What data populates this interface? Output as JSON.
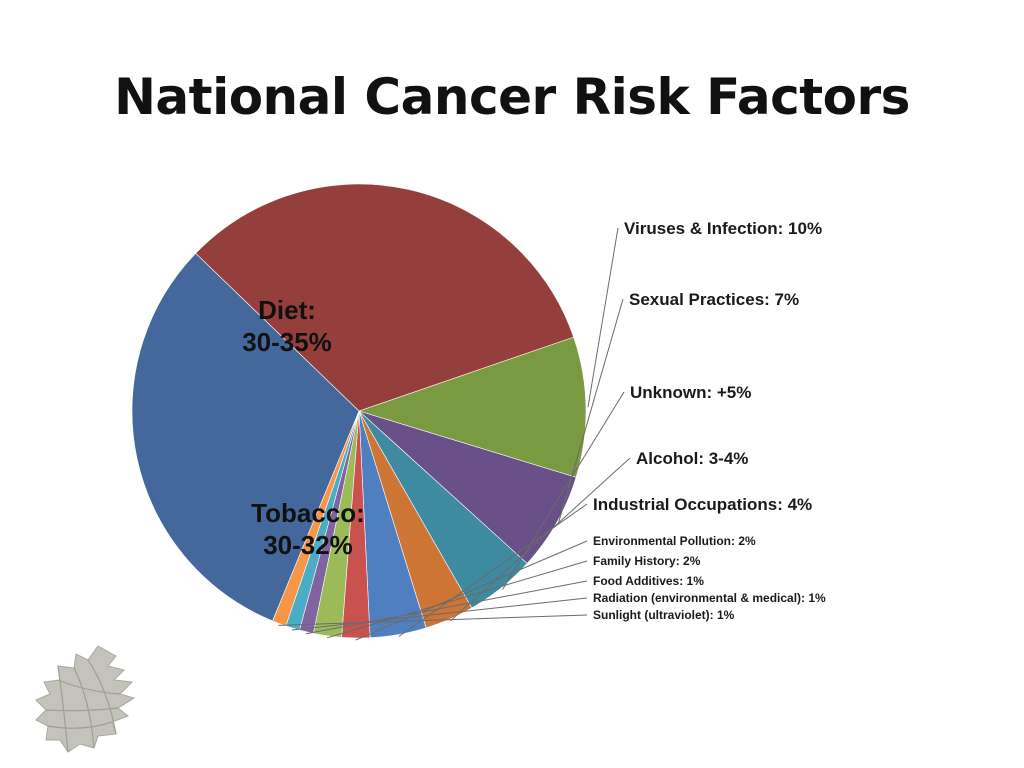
{
  "slide": {
    "title": "National Cancer Risk Factors"
  },
  "logo": {
    "icon": "pinecone-icon"
  },
  "chart_data": {
    "type": "pie",
    "title": "National Cancer Risk Factors",
    "slices": [
      {
        "label": "Viruses & Infection: 10%",
        "value": 10,
        "color": "#7a9a42"
      },
      {
        "label": "Sexual Practices: 7%",
        "value": 7,
        "color": "#6a5088"
      },
      {
        "label": "Unknown: +5%",
        "value": 5,
        "color": "#3e8aa0"
      },
      {
        "label": "Alcohol: 3-4%",
        "value": 3.5,
        "color": "#cd7535"
      },
      {
        "label": "Industrial Occupations: 4%",
        "value": 4,
        "color": "#4f7fc1"
      },
      {
        "label": "Environmental Pollution: 2%",
        "value": 2,
        "color": "#c9524f"
      },
      {
        "label": "Family History: 2%",
        "value": 2,
        "color": "#9bbb59"
      },
      {
        "label": "Food Additives: 1%",
        "value": 1,
        "color": "#8064a2"
      },
      {
        "label": "Radiation (environmental & medical): 1%",
        "value": 1,
        "color": "#4bacc6"
      },
      {
        "label": "Sunlight (ultraviolet): 1%",
        "value": 1,
        "color": "#f79646"
      },
      {
        "label": "Tobacco:\n30-32%",
        "value": 31,
        "color": "#44689c"
      },
      {
        "label": "Diet:\n30-35%",
        "value": 32.5,
        "color": "#953f3c"
      }
    ],
    "legend": "callouts-right"
  }
}
